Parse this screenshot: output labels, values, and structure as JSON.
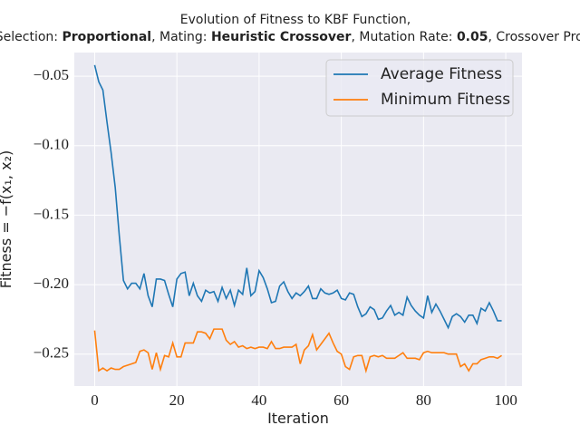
{
  "chart_data": {
    "type": "line",
    "title": "Evolution of Fitness to KBF Function,",
    "subtitle": [
      {
        "text": "Selection: ",
        "bold": false
      },
      {
        "text": "Proportional",
        "bold": true
      },
      {
        "text": ", Mating: ",
        "bold": false
      },
      {
        "text": "Heuristic Crossover",
        "bold": true
      },
      {
        "text": ", Mutation Rate: ",
        "bold": false
      },
      {
        "text": "0.05",
        "bold": true
      },
      {
        "text": ", Crossover Prob:",
        "bold": false
      }
    ],
    "x_label": "Iteration",
    "y_label": "Fitness = −f(x₁, x₂)",
    "x": [
      0,
      1,
      2,
      3,
      4,
      5,
      6,
      7,
      8,
      9,
      10,
      11,
      12,
      13,
      14,
      15,
      16,
      17,
      18,
      19,
      20,
      21,
      22,
      23,
      24,
      25,
      26,
      27,
      28,
      29,
      30,
      31,
      32,
      33,
      34,
      35,
      36,
      37,
      38,
      39,
      40,
      41,
      42,
      43,
      44,
      45,
      46,
      47,
      48,
      49,
      50,
      51,
      52,
      53,
      54,
      55,
      56,
      57,
      58,
      59,
      60,
      61,
      62,
      63,
      64,
      65,
      66,
      67,
      68,
      69,
      70,
      71,
      72,
      73,
      74,
      75,
      76,
      77,
      78,
      79,
      80,
      81,
      82,
      83,
      84,
      85,
      86,
      87,
      88,
      89,
      90,
      91,
      92,
      93,
      94,
      95,
      96,
      97,
      98,
      99
    ],
    "series": [
      {
        "name": "Average Fitness",
        "color": "#1f77b4",
        "values": [
          -0.042,
          -0.054,
          -0.06,
          -0.083,
          -0.105,
          -0.13,
          -0.165,
          -0.197,
          -0.203,
          -0.199,
          -0.199,
          -0.203,
          -0.192,
          -0.208,
          -0.216,
          -0.196,
          -0.196,
          -0.197,
          -0.207,
          -0.216,
          -0.196,
          -0.192,
          -0.191,
          -0.208,
          -0.199,
          -0.208,
          -0.212,
          -0.204,
          -0.206,
          -0.205,
          -0.212,
          -0.202,
          -0.21,
          -0.204,
          -0.215,
          -0.204,
          -0.207,
          -0.188,
          -0.208,
          -0.205,
          -0.19,
          -0.195,
          -0.203,
          -0.213,
          -0.212,
          -0.201,
          -0.198,
          -0.205,
          -0.21,
          -0.206,
          -0.208,
          -0.205,
          -0.201,
          -0.21,
          -0.21,
          -0.203,
          -0.206,
          -0.207,
          -0.206,
          -0.204,
          -0.21,
          -0.211,
          -0.206,
          -0.207,
          -0.216,
          -0.223,
          -0.221,
          -0.216,
          -0.218,
          -0.225,
          -0.224,
          -0.219,
          -0.215,
          -0.222,
          -0.22,
          -0.222,
          -0.209,
          -0.215,
          -0.219,
          -0.222,
          -0.224,
          -0.208,
          -0.22,
          -0.214,
          -0.219,
          -0.225,
          -0.231,
          -0.223,
          -0.221,
          -0.223,
          -0.227,
          -0.222,
          -0.222,
          -0.228,
          -0.217,
          -0.219,
          -0.213,
          -0.219,
          -0.226,
          -0.226
        ]
      },
      {
        "name": "Minimum Fitness",
        "color": "#ff7f0e",
        "values": [
          -0.233,
          -0.262,
          -0.26,
          -0.262,
          -0.26,
          -0.261,
          -0.261,
          -0.259,
          -0.258,
          -0.257,
          -0.256,
          -0.248,
          -0.247,
          -0.249,
          -0.261,
          -0.249,
          -0.261,
          -0.251,
          -0.252,
          -0.242,
          -0.252,
          -0.252,
          -0.242,
          -0.242,
          -0.242,
          -0.234,
          -0.234,
          -0.235,
          -0.239,
          -0.232,
          -0.232,
          -0.232,
          -0.24,
          -0.243,
          -0.241,
          -0.245,
          -0.244,
          -0.246,
          -0.245,
          -0.246,
          -0.245,
          -0.245,
          -0.246,
          -0.241,
          -0.246,
          -0.246,
          -0.245,
          -0.245,
          -0.245,
          -0.243,
          -0.257,
          -0.247,
          -0.244,
          -0.236,
          -0.247,
          -0.243,
          -0.239,
          -0.235,
          -0.242,
          -0.248,
          -0.25,
          -0.259,
          -0.261,
          -0.252,
          -0.251,
          -0.251,
          -0.262,
          -0.252,
          -0.251,
          -0.252,
          -0.251,
          -0.253,
          -0.253,
          -0.253,
          -0.251,
          -0.249,
          -0.253,
          -0.253,
          -0.253,
          -0.254,
          -0.249,
          -0.248,
          -0.249,
          -0.249,
          -0.249,
          -0.249,
          -0.25,
          -0.25,
          -0.25,
          -0.259,
          -0.257,
          -0.262,
          -0.257,
          -0.257,
          -0.254,
          -0.253,
          -0.252,
          -0.252,
          -0.253,
          -0.251
        ]
      }
    ],
    "xlim": [
      -4.95,
      103.95
    ],
    "ylim": [
      -0.273,
      -0.033
    ],
    "xticks": [
      0,
      20,
      40,
      60,
      80,
      100
    ],
    "yticks": [
      {
        "value": -0.25,
        "label": "−0.25"
      },
      {
        "value": -0.2,
        "label": "−0.20"
      },
      {
        "value": -0.15,
        "label": "−0.15"
      },
      {
        "value": -0.1,
        "label": "−0.10"
      },
      {
        "value": -0.05,
        "label": "−0.05"
      }
    ],
    "grid": true,
    "legend": "upper right"
  }
}
